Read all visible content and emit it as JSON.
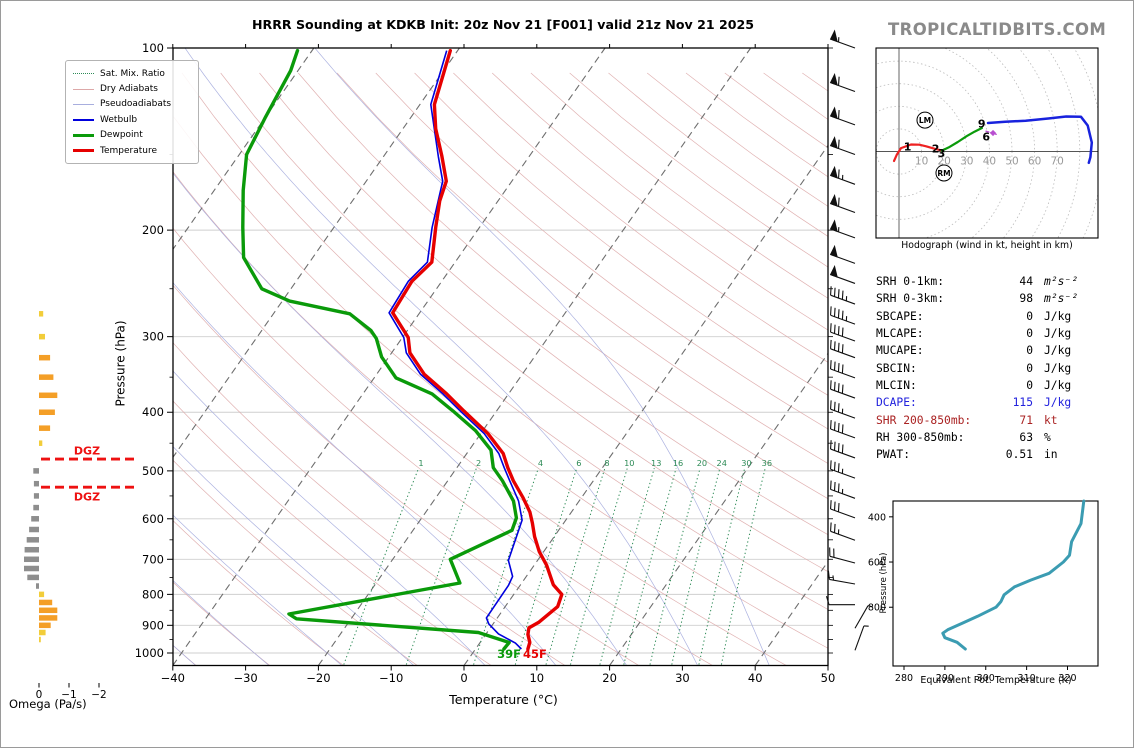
{
  "header": {
    "title": "HRRR Sounding at KDKB Init: 20z Nov 21 [F001] valid 21z Nov 21 2025",
    "watermark": "TROPICALTIDBITS.COM"
  },
  "legend": {
    "items": [
      {
        "label": "Sat. Mix. Ratio",
        "color": "#2e8b57"
      },
      {
        "label": "Dry Adiabats",
        "color": "#dda8a8"
      },
      {
        "label": "Pseudoadiabats",
        "color": "#a8aede"
      },
      {
        "label": "Wetbulb",
        "color": "#0000dd"
      },
      {
        "label": "Dewpoint",
        "color": "#0a9a0a"
      },
      {
        "label": "Temperature",
        "color": "#e60000"
      }
    ]
  },
  "skewt_axes": {
    "xlabel": "Temperature (°C)",
    "ylabel": "Pressure (hPa)",
    "x_ticks": [
      -40,
      -30,
      -20,
      -10,
      0,
      10,
      20,
      30,
      40,
      50
    ],
    "y_ticks": [
      100,
      200,
      300,
      400,
      500,
      600,
      700,
      800,
      900,
      1000
    ]
  },
  "surface_labels": {
    "dewpoint": "39F",
    "temperature": "45F"
  },
  "dgz": {
    "label": "DGZ"
  },
  "omega": {
    "label": "Omega (Pa/s)",
    "ticks": [
      "0",
      "−1",
      "−2"
    ]
  },
  "hodograph": {
    "caption": "Hodograph (wind in kt, height in km)",
    "tick_labels": [
      10,
      20,
      30,
      40,
      50,
      60,
      70
    ],
    "markers": [
      {
        "text": "LM",
        "u": 11.5,
        "v": 13.9
      },
      {
        "text": "RM",
        "u": 19.9,
        "v": -9.5
      }
    ]
  },
  "stats": {
    "rows": [
      {
        "label": "SRH 0-1km:",
        "value": "44",
        "unit": "m²s⁻²"
      },
      {
        "label": "SRH 0-3km:",
        "value": "98",
        "unit": "m²s⁻²"
      },
      {
        "label": "SBCAPE:",
        "value": "0",
        "unit": "J/kg"
      },
      {
        "label": "MLCAPE:",
        "value": "0",
        "unit": "J/kg"
      },
      {
        "label": "MUCAPE:",
        "value": "0",
        "unit": "J/kg"
      },
      {
        "label": "SBCIN:",
        "value": "0",
        "unit": "J/kg"
      },
      {
        "label": "MLCIN:",
        "value": "0",
        "unit": "J/kg"
      },
      {
        "label": "DCAPE:",
        "value": "115",
        "unit": "J/kg"
      },
      {
        "label": "SHR 200-850mb:",
        "value": "71",
        "unit": "kt"
      },
      {
        "label": "RH 300-850mb:",
        "value": "63",
        "unit": "%"
      },
      {
        "label": "PWAT:",
        "value": "0.51",
        "unit": "in"
      }
    ]
  },
  "thetae": {
    "xlabel": "Equivalent Pot. Temperature (K)",
    "ylabel": "Pressure (hPa)",
    "x_ticks": [
      280,
      290,
      300,
      310,
      320
    ],
    "y_ticks": [
      400,
      600,
      800
    ]
  },
  "chart_data": {
    "type": "skewt-sounding",
    "pressure_range_hpa": [
      100,
      1050
    ],
    "temperature_range_c": [
      -40,
      50
    ],
    "temperature_profile": [
      [
        101,
        -61
      ],
      [
        124,
        -58
      ],
      [
        136,
        -55.5
      ],
      [
        151,
        -52
      ],
      [
        166,
        -49
      ],
      [
        179,
        -48
      ],
      [
        198,
        -46
      ],
      [
        226,
        -43.2
      ],
      [
        243,
        -44.1
      ],
      [
        274,
        -43.7
      ],
      [
        301,
        -39.2
      ],
      [
        319,
        -37.5
      ],
      [
        346,
        -33.5
      ],
      [
        373,
        -28.5
      ],
      [
        398,
        -24.5
      ],
      [
        434,
        -19
      ],
      [
        468,
        -15
      ],
      [
        494,
        -13
      ],
      [
        519,
        -11
      ],
      [
        554,
        -8
      ],
      [
        585,
        -5.7
      ],
      [
        610,
        -4.3
      ],
      [
        642,
        -2.7
      ],
      [
        680,
        -0.6
      ],
      [
        716,
        1.7
      ],
      [
        771,
        4.5
      ],
      [
        800,
        6.6
      ],
      [
        838,
        7.2
      ],
      [
        890,
        6.1
      ],
      [
        909,
        5.3
      ],
      [
        932,
        5.8
      ],
      [
        960,
        6.8
      ],
      [
        985,
        7.2
      ]
    ],
    "dewpoint_profile": [
      [
        101,
        -82
      ],
      [
        109,
        -81
      ],
      [
        130,
        -80
      ],
      [
        150,
        -79
      ],
      [
        172,
        -76
      ],
      [
        198,
        -72.5
      ],
      [
        222,
        -69.5
      ],
      [
        250,
        -64
      ],
      [
        262,
        -59
      ],
      [
        275,
        -49.5
      ],
      [
        293,
        -45
      ],
      [
        302,
        -43.5
      ],
      [
        324,
        -41
      ],
      [
        351,
        -37
      ],
      [
        373,
        -30.5
      ],
      [
        398,
        -26
      ],
      [
        429,
        -21
      ],
      [
        462,
        -17
      ],
      [
        494,
        -15
      ],
      [
        519,
        -12.5
      ],
      [
        561,
        -9
      ],
      [
        598,
        -7
      ],
      [
        627,
        -6.4
      ],
      [
        700,
        -12.1
      ],
      [
        766,
        -8.5
      ],
      [
        862,
        -29
      ],
      [
        878,
        -27.5
      ],
      [
        925,
        -1.2
      ],
      [
        961,
        4
      ],
      [
        985,
        3.9
      ]
    ],
    "wetbulb_profile": [
      [
        101,
        -61.5
      ],
      [
        124,
        -58.5
      ],
      [
        151,
        -52.5
      ],
      [
        166,
        -49.5
      ],
      [
        198,
        -46.5
      ],
      [
        226,
        -43.8
      ],
      [
        243,
        -44.6
      ],
      [
        274,
        -44.2
      ],
      [
        301,
        -39.8
      ],
      [
        319,
        -38
      ],
      [
        346,
        -34
      ],
      [
        373,
        -29
      ],
      [
        398,
        -25
      ],
      [
        434,
        -19.5
      ],
      [
        468,
        -15.6
      ],
      [
        494,
        -13.5
      ],
      [
        519,
        -11.5
      ],
      [
        561,
        -8.3
      ],
      [
        603,
        -6
      ],
      [
        703,
        -4
      ],
      [
        747,
        -1.9
      ],
      [
        773,
        -1.6
      ],
      [
        875,
        -1.5
      ],
      [
        895,
        -0.6
      ],
      [
        930,
        1.7
      ],
      [
        963,
        4.9
      ],
      [
        985,
        6.3
      ]
    ],
    "mixing_ratio_labels": [
      1,
      2,
      4,
      6,
      8,
      10,
      13,
      16,
      20,
      24,
      30,
      36
    ],
    "dgz_pressures": [
      478,
      532
    ],
    "omega_bars": [
      [
        275,
        -0.14
      ],
      [
        300,
        -0.2
      ],
      [
        325,
        -0.37
      ],
      [
        350,
        -0.48
      ],
      [
        375,
        -0.61
      ],
      [
        400,
        -0.53
      ],
      [
        425,
        -0.37
      ],
      [
        450,
        -0.11
      ],
      [
        500,
        0.19
      ],
      [
        525,
        0.17
      ],
      [
        550,
        0.17
      ],
      [
        575,
        0.19
      ],
      [
        600,
        0.26
      ],
      [
        625,
        0.33
      ],
      [
        650,
        0.41
      ],
      [
        675,
        0.48
      ],
      [
        700,
        0.5
      ],
      [
        725,
        0.5
      ],
      [
        750,
        0.39
      ],
      [
        775,
        0.1
      ],
      [
        800,
        -0.17
      ],
      [
        825,
        -0.44
      ],
      [
        850,
        -0.61
      ],
      [
        875,
        -0.61
      ],
      [
        900,
        -0.39
      ],
      [
        925,
        -0.22
      ],
      [
        950,
        -0.06
      ]
    ],
    "wind_barbs": [
      [
        100,
        55,
        290
      ],
      [
        118,
        60,
        290
      ],
      [
        134,
        60,
        290
      ],
      [
        150,
        60,
        290
      ],
      [
        168,
        65,
        290
      ],
      [
        187,
        60,
        290
      ],
      [
        206,
        55,
        290
      ],
      [
        227,
        50,
        290
      ],
      [
        245,
        50,
        290
      ],
      [
        265,
        45,
        290
      ],
      [
        286,
        45,
        290
      ],
      [
        305,
        40,
        290
      ],
      [
        325,
        40,
        290
      ],
      [
        351,
        40,
        290
      ],
      [
        379,
        40,
        290
      ],
      [
        409,
        35,
        290
      ],
      [
        441,
        40,
        290
      ],
      [
        476,
        40,
        290
      ],
      [
        514,
        35,
        290
      ],
      [
        555,
        35,
        290
      ],
      [
        598,
        30,
        290
      ],
      [
        651,
        25,
        290
      ],
      [
        710,
        20,
        285
      ],
      [
        769,
        15,
        280
      ],
      [
        832,
        10,
        270
      ],
      [
        910,
        5,
        30
      ],
      [
        990,
        5,
        20
      ]
    ],
    "hodograph": {
      "ring_step_kt": 10,
      "segments": [
        {
          "color": "hodo_red",
          "width": 2.2,
          "points": [
            [
              -2.2,
              -4.2
            ],
            [
              -1,
              -1.5
            ],
            [
              0.9,
              1.5
            ],
            [
              5.3,
              3.1
            ],
            [
              9,
              3
            ],
            [
              12,
              2.3
            ],
            [
              15.5,
              1.3
            ],
            [
              19,
              0.4
            ]
          ]
        },
        {
          "color": "hodo_green",
          "width": 2.2,
          "points": [
            [
              19,
              0.4
            ],
            [
              22,
              1.8
            ],
            [
              26,
              4.2
            ],
            [
              30,
              6.8
            ],
            [
              33.5,
              8.8
            ],
            [
              36.7,
              10.4
            ]
          ]
        },
        {
          "color": "hodo_blue",
          "width": 2.5,
          "points": [
            [
              39.4,
              12.6
            ],
            [
              47,
              13.2
            ],
            [
              56,
              13.6
            ],
            [
              66,
              14.6
            ],
            [
              74,
              15.5
            ],
            [
              80.5,
              15.4
            ],
            [
              83.5,
              11.5
            ],
            [
              85.3,
              4
            ],
            [
              84.7,
              -2.5
            ],
            [
              84,
              -5
            ]
          ]
        },
        {
          "color": "hodo_magenta",
          "width": 1.4,
          "dash": "3 2",
          "points": [
            [
              38.5,
              9
            ],
            [
              43,
              7.6
            ]
          ]
        }
      ],
      "height_labels": [
        {
          "text": "1",
          "u": 3.8,
          "v": 2.2
        },
        {
          "text": "2",
          "u": 16.2,
          "v": 1.4
        },
        {
          "text": "3",
          "u": 18.8,
          "v": -0.6
        },
        {
          "text": "9",
          "u": 36.6,
          "v": 12.4
        },
        {
          "text": "6",
          "u": 38.6,
          "v": 6.6
        }
      ],
      "diamond": {
        "u": 41.6,
        "v": 8.2
      }
    },
    "thetae_profile": [
      [
        330,
        324
      ],
      [
        430,
        323.3
      ],
      [
        510,
        321
      ],
      [
        570,
        320.5
      ],
      [
        600,
        319
      ],
      [
        650,
        315.5
      ],
      [
        680,
        311
      ],
      [
        710,
        307
      ],
      [
        745,
        304.5
      ],
      [
        775,
        303.7
      ],
      [
        800,
        302.5
      ],
      [
        840,
        298
      ],
      [
        870,
        294.3
      ],
      [
        900,
        290.7
      ],
      [
        915,
        289.5
      ],
      [
        935,
        290
      ],
      [
        955,
        293
      ],
      [
        985,
        295
      ]
    ]
  },
  "colors": {
    "temperature": "#e60000",
    "dewpoint": "#0a9a0a",
    "wetbulb": "#0000dd",
    "dry_adiabat": "#dda8a8",
    "pseudoadiabat": "#a8aede",
    "mixing_ratio": "#2e8b57",
    "isotherm": "#6e6e6e",
    "grid": "#cfcfcf",
    "omega_up_strong": "#f49f27",
    "omega_up_weak": "#f2cd3a",
    "omega_down": "#8e8e8e",
    "dgz": "#ee1111",
    "thetae": "#3b9cb2",
    "watermark": "#8a8a8a",
    "hodo_red": "#ee2222",
    "hodo_green": "#0a9a0a",
    "hodo_blue": "#1822dd",
    "hodo_magenta": "#b84fd0",
    "dcape": "#2222dd",
    "shr": "#aa2222",
    "barb": "#111111"
  }
}
